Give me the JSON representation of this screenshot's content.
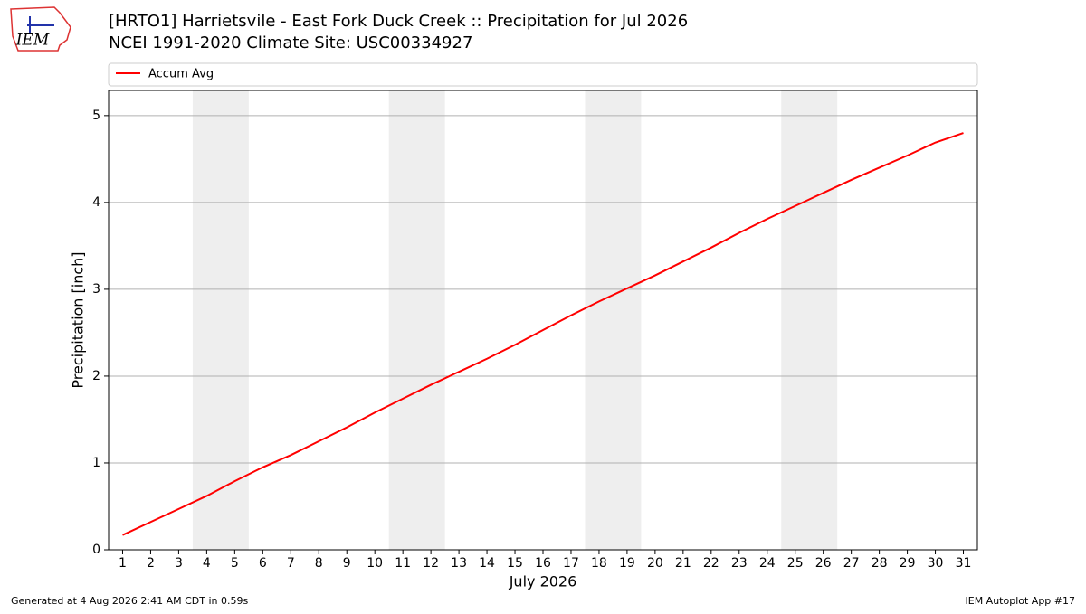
{
  "logo_text": "IEM",
  "footer": {
    "left": "Generated at 4 Aug 2026 2:41 AM CDT in 0.59s",
    "right": "IEM Autoplot App #17"
  },
  "chart_data": {
    "type": "line",
    "title": "[HRTO1] Harrietsvile - East Fork Duck Creek :: Precipitation for Jul 2026",
    "subtitle": "NCEI 1991-2020 Climate Site: USC00334927",
    "x_label": "July 2026",
    "y_label": "Precipitation [inch]",
    "x": [
      1,
      2,
      3,
      4,
      5,
      6,
      7,
      8,
      9,
      10,
      11,
      12,
      13,
      14,
      15,
      16,
      17,
      18,
      19,
      20,
      21,
      22,
      23,
      24,
      25,
      26,
      27,
      28,
      29,
      30,
      31
    ],
    "series": [
      {
        "name": "Accum Avg",
        "color": "#ff0000",
        "values": [
          0.17,
          0.32,
          0.47,
          0.62,
          0.79,
          0.95,
          1.09,
          1.25,
          1.41,
          1.58,
          1.74,
          1.9,
          2.05,
          2.2,
          2.36,
          2.53,
          2.7,
          2.86,
          3.01,
          3.16,
          3.32,
          3.48,
          3.65,
          3.81,
          3.96,
          4.11,
          4.26,
          4.4,
          4.54,
          4.69,
          4.8
        ]
      }
    ],
    "shaded_ranges": [
      [
        3.5,
        5.5
      ],
      [
        10.5,
        12.5
      ],
      [
        17.5,
        19.5
      ],
      [
        24.5,
        26.5
      ]
    ],
    "shade_color": "#eeeeee",
    "xlim": [
      0.5,
      31.5
    ],
    "xticks": [
      1,
      2,
      3,
      4,
      5,
      6,
      7,
      8,
      9,
      10,
      11,
      12,
      13,
      14,
      15,
      16,
      17,
      18,
      19,
      20,
      21,
      22,
      23,
      24,
      25,
      26,
      27,
      28,
      29,
      30,
      31
    ],
    "ylim": [
      0,
      5.29
    ],
    "yticks": [
      0,
      1,
      2,
      3,
      4,
      5
    ],
    "grid": true,
    "legend": "top"
  }
}
